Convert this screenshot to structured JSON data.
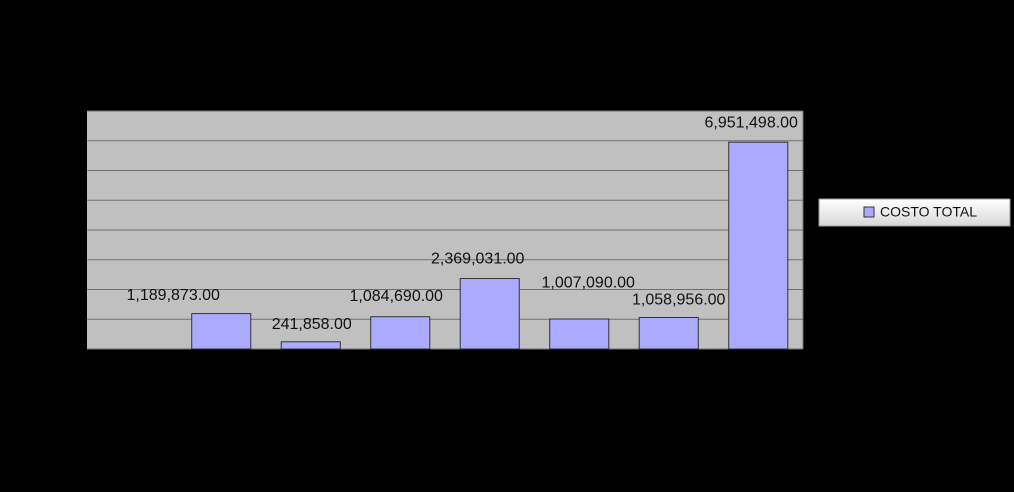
{
  "chart_data": {
    "type": "bar",
    "values": [
      1189873,
      241858,
      1084690,
      2369031,
      1007090,
      1058956,
      6951498
    ],
    "value_labels": [
      "1,189,873.00",
      "241,858.00",
      "1,084,690.00",
      "2,369,031.00",
      "1,007,090.00",
      "1,058,956.00",
      "6,951,498.00"
    ],
    "series_name": "COSTO TOTAL",
    "color": "#aaaaff",
    "ylim": [
      0,
      8000000
    ],
    "yticks": [
      0,
      1000000,
      2000000,
      3000000,
      4000000,
      5000000,
      6000000,
      7000000,
      8000000
    ],
    "grid": true
  }
}
